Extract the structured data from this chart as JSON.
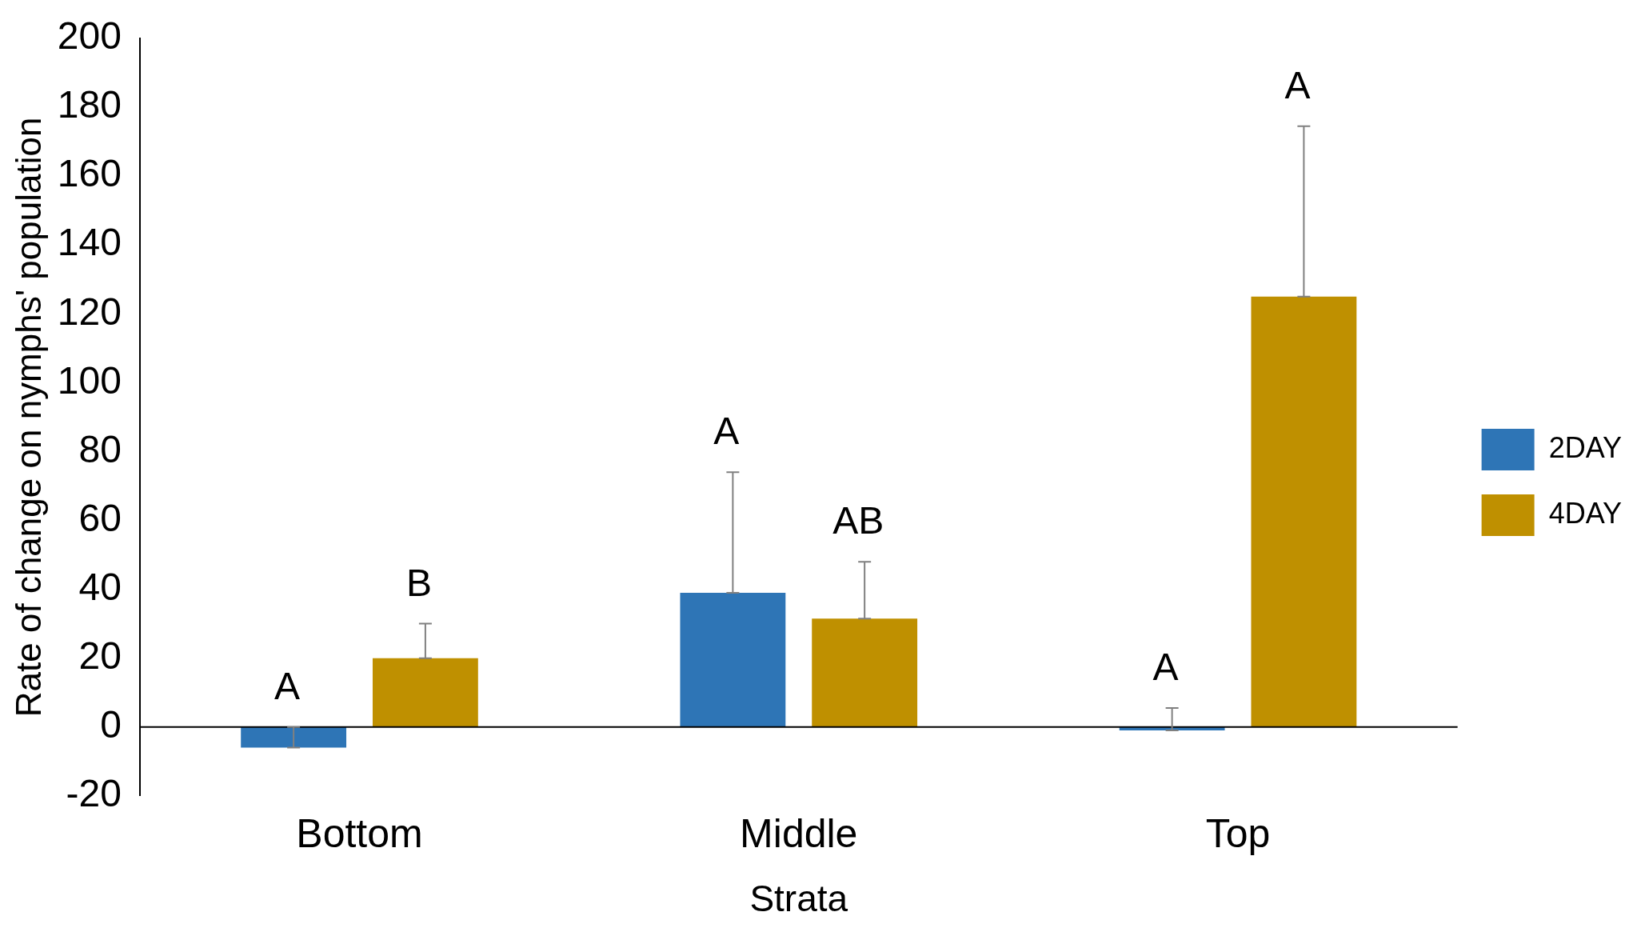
{
  "chart_data": {
    "type": "bar",
    "xlabel": "Strata",
    "ylabel": "Rate of change on nymphs' population",
    "categories": [
      "Bottom",
      "Middle",
      "Top"
    ],
    "series": [
      {
        "name": "2DAY",
        "color": "#2e75b6",
        "values": [
          -6,
          39,
          -1
        ],
        "errors": [
          [
            -6,
            0
          ],
          [
            39,
            74
          ],
          [
            -1,
            5.5
          ]
        ]
      },
      {
        "name": "4DAY",
        "color": "#bf9000",
        "values": [
          20,
          31.5,
          125
        ],
        "errors": [
          [
            20,
            30
          ],
          [
            31.5,
            48
          ],
          [
            125,
            174.5
          ]
        ]
      }
    ],
    "annotations": [
      "A",
      "B",
      "A",
      "AB",
      "A",
      "A"
    ],
    "ylim": [
      -20,
      200
    ],
    "yticks": [
      -20,
      0,
      20,
      40,
      60,
      80,
      100,
      120,
      140,
      160,
      180,
      200
    ],
    "grid": false,
    "legend": "right"
  }
}
